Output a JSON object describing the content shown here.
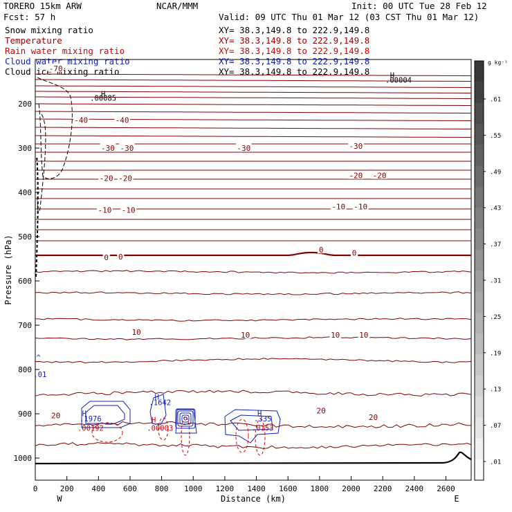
{
  "header": {
    "model": "TORERO   15km ARW",
    "center": "NCAR/MMM",
    "init": "Init: 00 UTC Tue 28 Feb 12",
    "fcst": "Fcst:   57 h",
    "valid": "Valid: 09 UTC Thu 01 Mar 12 (03 CST Thu 01 Mar 12)"
  },
  "fields": [
    {
      "name": "Snow mixing ratio",
      "xy": "XY=  38.3,149.8 to 222.9,149.8",
      "color": "#000000"
    },
    {
      "name": "Temperature",
      "xy": "XY=  38.3,149.8 to 222.9,149.8",
      "color": "#a00000"
    },
    {
      "name": "Rain water mixing ratio",
      "xy": "XY=  38.3,149.8 to 222.9,149.8",
      "color": "#d40000"
    },
    {
      "name": "Cloud water mixing ratio",
      "xy": "XY=  38.3,149.8 to 222.9,149.8",
      "color": "#1020c0"
    },
    {
      "name": "Cloud ice mixing ratio",
      "xy": "XY=  38.3,149.8 to 222.9,149.8",
      "color": "#000000"
    }
  ],
  "colorbar": {
    "unit": "g kg⁻¹",
    "labels": [
      ".61",
      ".55",
      ".49",
      ".43",
      ".37",
      ".31",
      ".25",
      ".19",
      ".13",
      ".07",
      ".01"
    ]
  },
  "chart_data": {
    "type": "cross-section contour",
    "xlabel": "Distance (km)",
    "ylabel": "Pressure (hPa)",
    "x_ticks": [
      0,
      200,
      400,
      600,
      800,
      1000,
      1200,
      1400,
      1600,
      1800,
      2000,
      2200,
      2400,
      2600
    ],
    "y_ticks": [
      200,
      300,
      400,
      500,
      600,
      700,
      800,
      900,
      1000
    ],
    "xlim": [
      0,
      2760
    ],
    "ylim": [
      1050,
      100
    ],
    "x_end_labels": {
      "left": "W",
      "right": "E"
    },
    "temperature_labels": [
      {
        "text": "-70",
        "x": 130,
        "p": 120
      },
      {
        "text": "-40",
        "x": 290,
        "p": 237
      },
      {
        "text": "-40",
        "x": 550,
        "p": 237
      },
      {
        "text": "-30",
        "x": 460,
        "p": 300
      },
      {
        "text": "-30",
        "x": 580,
        "p": 300
      },
      {
        "text": "-30",
        "x": 1320,
        "p": 300
      },
      {
        "text": "-30",
        "x": 2030,
        "p": 295
      },
      {
        "text": "-20",
        "x": 450,
        "p": 368
      },
      {
        "text": "-20",
        "x": 570,
        "p": 368
      },
      {
        "text": "-20",
        "x": 2030,
        "p": 362
      },
      {
        "text": "-20",
        "x": 2180,
        "p": 362
      },
      {
        "text": "-10",
        "x": 440,
        "p": 440
      },
      {
        "text": "-10",
        "x": 590,
        "p": 440
      },
      {
        "text": "-10",
        "x": 1920,
        "p": 432
      },
      {
        "text": "-10",
        "x": 2060,
        "p": 432
      },
      {
        "text": "0",
        "x": 450,
        "p": 547
      },
      {
        "text": "0",
        "x": 540,
        "p": 545
      },
      {
        "text": "0",
        "x": 1810,
        "p": 530
      },
      {
        "text": "0",
        "x": 2020,
        "p": 537
      },
      {
        "text": "10",
        "x": 640,
        "p": 716
      },
      {
        "text": "10",
        "x": 1330,
        "p": 722
      },
      {
        "text": "10",
        "x": 1900,
        "p": 722
      },
      {
        "text": "10",
        "x": 2080,
        "p": 722
      },
      {
        "text": "20",
        "x": 130,
        "p": 904
      },
      {
        "text": "20",
        "x": 1810,
        "p": 893
      },
      {
        "text": "20",
        "x": 2140,
        "p": 908
      }
    ],
    "maxima_labels": [
      {
        "text": "H",
        "x": 430,
        "p": 177,
        "color": "#000000"
      },
      {
        "text": ".00085",
        "x": 430,
        "p": 187,
        "color": "#000000"
      },
      {
        "text": "H",
        "x": 2260,
        "p": 135,
        "color": "#000000"
      },
      {
        "text": ".00004",
        "x": 2300,
        "p": 146,
        "color": "#000000"
      },
      {
        "text": "^",
        "x": 20,
        "p": 773,
        "color": "#1020c0"
      },
      {
        "text": ".01",
        "x": 30,
        "p": 811,
        "color": "#1020c0"
      },
      {
        "text": "H",
        "x": 770,
        "p": 862,
        "color": "#1020c0"
      },
      {
        "text": ".1642",
        "x": 790,
        "p": 874,
        "color": "#1020c0"
      },
      {
        "text": "H",
        "x": 310,
        "p": 899,
        "color": "#1020c0"
      },
      {
        "text": ".1976",
        "x": 350,
        "p": 911,
        "color": "#1020c0"
      },
      {
        "text": ".00192",
        "x": 350,
        "p": 932,
        "color": "#d40000"
      },
      {
        "text": "H",
        "x": 750,
        "p": 913,
        "color": "#d40000"
      },
      {
        "text": ".00003",
        "x": 790,
        "p": 932,
        "color": "#d40000"
      },
      {
        "text": "H",
        "x": 1420,
        "p": 899,
        "color": "#1020c0"
      },
      {
        "text": ".335",
        "x": 1440,
        "p": 911,
        "color": "#1020c0"
      },
      {
        "text": ".0153",
        "x": 1440,
        "p": 932,
        "color": "#d40000"
      }
    ]
  }
}
